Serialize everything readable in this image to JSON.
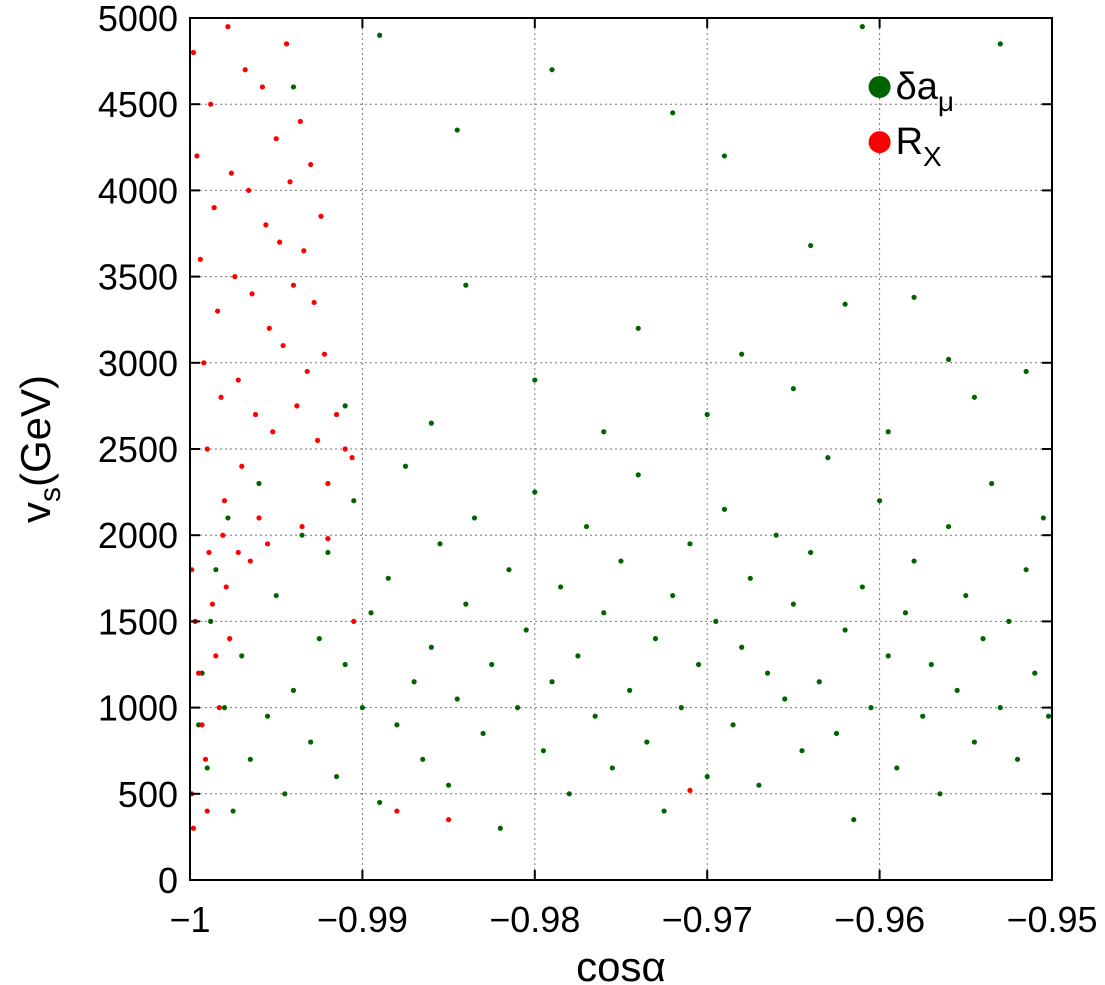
{
  "chart_data": {
    "type": "scatter",
    "xlabel": "cosα",
    "ylabel_main": "v",
    "ylabel_sub": "s",
    "ylabel_unit": "(GeV)",
    "xlim": [
      -1,
      -0.95
    ],
    "ylim": [
      0,
      5000
    ],
    "xticks": [
      -1,
      -0.99,
      -0.98,
      -0.97,
      -0.96,
      -0.95
    ],
    "xtick_labels": [
      "−1",
      "−0.99",
      "−0.98",
      "−0.97",
      "−0.96",
      "−0.95"
    ],
    "yticks": [
      0,
      500,
      1000,
      1500,
      2000,
      2500,
      3000,
      3500,
      4000,
      4500,
      5000
    ],
    "ytick_labels": [
      "0",
      "500",
      "1000",
      "1500",
      "2000",
      "2500",
      "3000",
      "3500",
      "4000",
      "4500",
      "5000"
    ],
    "grid": true,
    "legend_position": "top-right",
    "series": [
      {
        "name_main": "δa",
        "name_sub": "μ",
        "color": "#006400",
        "description_of_density": "dense band across full x range, mostly v_s 0-2500 GeV concentrated near 1000-1500, sparse points up to 5000",
        "points": [
          [
            -0.9995,
            900
          ],
          [
            -0.9993,
            1200
          ],
          [
            -0.999,
            650
          ],
          [
            -0.9988,
            1500
          ],
          [
            -0.9985,
            1800
          ],
          [
            -0.998,
            1000
          ],
          [
            -0.9978,
            2100
          ],
          [
            -0.9975,
            400
          ],
          [
            -0.997,
            1300
          ],
          [
            -0.9965,
            700
          ],
          [
            -0.996,
            2300
          ],
          [
            -0.9955,
            950
          ],
          [
            -0.995,
            1650
          ],
          [
            -0.9945,
            500
          ],
          [
            -0.994,
            1100
          ],
          [
            -0.9935,
            2000
          ],
          [
            -0.993,
            800
          ],
          [
            -0.9925,
            1400
          ],
          [
            -0.992,
            1900
          ],
          [
            -0.9915,
            600
          ],
          [
            -0.991,
            1250
          ],
          [
            -0.9905,
            2200
          ],
          [
            -0.99,
            1000
          ],
          [
            -0.9895,
            1550
          ],
          [
            -0.989,
            450
          ],
          [
            -0.9885,
            1750
          ],
          [
            -0.988,
            900
          ],
          [
            -0.9875,
            2400
          ],
          [
            -0.987,
            1150
          ],
          [
            -0.9865,
            700
          ],
          [
            -0.986,
            1350
          ],
          [
            -0.9855,
            1950
          ],
          [
            -0.985,
            550
          ],
          [
            -0.9845,
            1050
          ],
          [
            -0.984,
            1600
          ],
          [
            -0.9835,
            2100
          ],
          [
            -0.983,
            850
          ],
          [
            -0.9825,
            1250
          ],
          [
            -0.982,
            300
          ],
          [
            -0.9815,
            1800
          ],
          [
            -0.981,
            1000
          ],
          [
            -0.9805,
            1450
          ],
          [
            -0.98,
            2250
          ],
          [
            -0.9795,
            750
          ],
          [
            -0.979,
            1150
          ],
          [
            -0.9785,
            1700
          ],
          [
            -0.978,
            500
          ],
          [
            -0.9775,
            1300
          ],
          [
            -0.977,
            2050
          ],
          [
            -0.9765,
            950
          ],
          [
            -0.976,
            1550
          ],
          [
            -0.9755,
            650
          ],
          [
            -0.975,
            1850
          ],
          [
            -0.9745,
            1100
          ],
          [
            -0.974,
            2350
          ],
          [
            -0.9735,
            800
          ],
          [
            -0.973,
            1400
          ],
          [
            -0.9725,
            400
          ],
          [
            -0.972,
            1650
          ],
          [
            -0.9715,
            1000
          ],
          [
            -0.971,
            1950
          ],
          [
            -0.9705,
            1250
          ],
          [
            -0.97,
            600
          ],
          [
            -0.9695,
            1500
          ],
          [
            -0.969,
            2150
          ],
          [
            -0.9685,
            900
          ],
          [
            -0.968,
            1350
          ],
          [
            -0.9675,
            1750
          ],
          [
            -0.967,
            550
          ],
          [
            -0.9665,
            1200
          ],
          [
            -0.966,
            2000
          ],
          [
            -0.9655,
            1050
          ],
          [
            -0.965,
            1600
          ],
          [
            -0.9645,
            750
          ],
          [
            -0.964,
            1900
          ],
          [
            -0.9635,
            1150
          ],
          [
            -0.963,
            2450
          ],
          [
            -0.9625,
            850
          ],
          [
            -0.962,
            1450
          ],
          [
            -0.9615,
            350
          ],
          [
            -0.961,
            1700
          ],
          [
            -0.9605,
            1000
          ],
          [
            -0.96,
            2200
          ],
          [
            -0.9595,
            1300
          ],
          [
            -0.959,
            650
          ],
          [
            -0.9585,
            1550
          ],
          [
            -0.958,
            1850
          ],
          [
            -0.9575,
            950
          ],
          [
            -0.957,
            1250
          ],
          [
            -0.9565,
            500
          ],
          [
            -0.956,
            2050
          ],
          [
            -0.9555,
            1100
          ],
          [
            -0.955,
            1650
          ],
          [
            -0.9545,
            800
          ],
          [
            -0.954,
            1400
          ],
          [
            -0.9535,
            2300
          ],
          [
            -0.953,
            1000
          ],
          [
            -0.9525,
            1500
          ],
          [
            -0.952,
            700
          ],
          [
            -0.9515,
            1800
          ],
          [
            -0.951,
            1200
          ],
          [
            -0.9505,
            2100
          ],
          [
            -0.9502,
            950
          ],
          [
            -0.994,
            4600
          ],
          [
            -0.989,
            4900
          ],
          [
            -0.9845,
            4350
          ],
          [
            -0.979,
            4700
          ],
          [
            -0.972,
            4450
          ],
          [
            -0.969,
            4200
          ],
          [
            -0.964,
            3680
          ],
          [
            -0.961,
            4950
          ],
          [
            -0.958,
            3380
          ],
          [
            -0.953,
            4850
          ],
          [
            -0.984,
            3450
          ],
          [
            -0.974,
            3200
          ],
          [
            -0.968,
            3050
          ],
          [
            -0.962,
            3340
          ],
          [
            -0.956,
            3020
          ],
          [
            -0.991,
            2750
          ],
          [
            -0.986,
            2650
          ],
          [
            -0.98,
            2900
          ],
          [
            -0.976,
            2600
          ],
          [
            -0.97,
            2700
          ],
          [
            -0.965,
            2850
          ],
          [
            -0.9595,
            2600
          ],
          [
            -0.9545,
            2800
          ],
          [
            -0.9515,
            2950
          ]
        ]
      },
      {
        "name_main": "R",
        "name_sub": "X",
        "color": "#ff0000",
        "description_of_density": "dense band at cosα between -1 and about -0.992, v_s from ~500 up to 5000 GeV",
        "points": [
          [
            -0.9998,
            4800
          ],
          [
            -0.9996,
            4200
          ],
          [
            -0.9994,
            3600
          ],
          [
            -0.9992,
            3000
          ],
          [
            -0.999,
            2500
          ],
          [
            -0.9988,
            4500
          ],
          [
            -0.9986,
            3900
          ],
          [
            -0.9984,
            3300
          ],
          [
            -0.9982,
            2800
          ],
          [
            -0.998,
            2200
          ],
          [
            -0.9978,
            4950
          ],
          [
            -0.9976,
            4100
          ],
          [
            -0.9974,
            3500
          ],
          [
            -0.9972,
            2900
          ],
          [
            -0.997,
            2400
          ],
          [
            -0.9968,
            4700
          ],
          [
            -0.9966,
            4000
          ],
          [
            -0.9964,
            3400
          ],
          [
            -0.9962,
            2700
          ],
          [
            -0.996,
            2100
          ],
          [
            -0.9958,
            4600
          ],
          [
            -0.9956,
            3800
          ],
          [
            -0.9954,
            3200
          ],
          [
            -0.9952,
            2600
          ],
          [
            -0.995,
            4300
          ],
          [
            -0.9948,
            3700
          ],
          [
            -0.9946,
            3100
          ],
          [
            -0.9944,
            4850
          ],
          [
            -0.9942,
            4050
          ],
          [
            -0.994,
            3450
          ],
          [
            -0.9938,
            2750
          ],
          [
            -0.9936,
            4400
          ],
          [
            -0.9934,
            3650
          ],
          [
            -0.9932,
            2950
          ],
          [
            -0.993,
            4150
          ],
          [
            -0.9928,
            3350
          ],
          [
            -0.9926,
            2550
          ],
          [
            -0.9924,
            3850
          ],
          [
            -0.9922,
            3050
          ],
          [
            -0.992,
            2300
          ],
          [
            -0.9915,
            2700
          ],
          [
            -0.991,
            2500
          ],
          [
            -0.9906,
            2450
          ],
          [
            -0.9999,
            1800
          ],
          [
            -0.9997,
            1500
          ],
          [
            -0.9995,
            1200
          ],
          [
            -0.9993,
            900
          ],
          [
            -0.9991,
            700
          ],
          [
            -0.9989,
            1900
          ],
          [
            -0.9987,
            1600
          ],
          [
            -0.9985,
            1300
          ],
          [
            -0.9983,
            1000
          ],
          [
            -0.9981,
            2000
          ],
          [
            -0.9979,
            1700
          ],
          [
            -0.9977,
            1400
          ],
          [
            -0.9999,
            500
          ],
          [
            -0.9998,
            300
          ],
          [
            -0.999,
            400
          ],
          [
            -0.9972,
            1900
          ],
          [
            -0.9965,
            1850
          ],
          [
            -0.9955,
            1950
          ],
          [
            -0.9935,
            2050
          ],
          [
            -0.9905,
            1500
          ],
          [
            -0.988,
            400
          ],
          [
            -0.985,
            350
          ],
          [
            -0.971,
            520
          ],
          [
            -0.992,
            1980
          ]
        ]
      }
    ]
  }
}
